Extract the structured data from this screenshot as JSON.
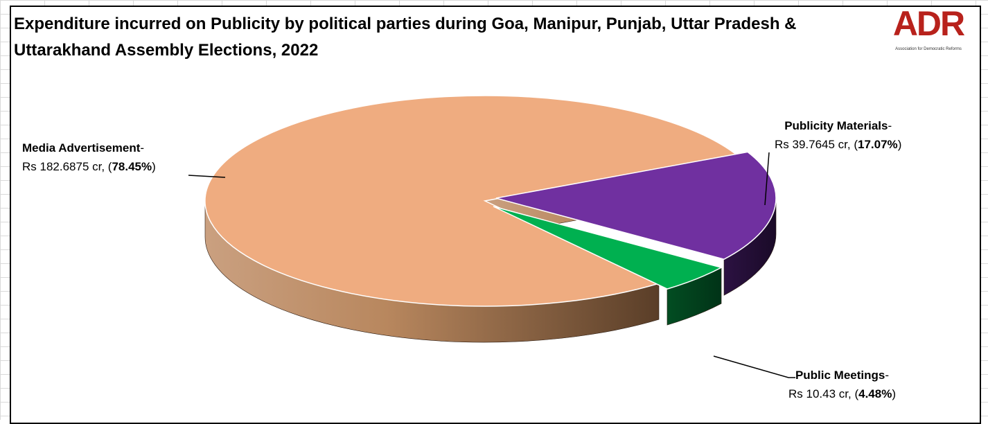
{
  "logo": {
    "text": "ADR",
    "subtitle": "Association for Democratic Reforms"
  },
  "colors": {
    "media": "#efac80",
    "materials": "#7030a0",
    "meetings": "#00b050"
  },
  "chart_data": {
    "type": "pie",
    "title": "Expenditure incurred on Publicity by political parties during Goa, Manipur, Punjab, Uttar Pradesh & Uttarakhand Assembly Elections, 2022",
    "slices": [
      {
        "label": "Media Advertisement",
        "amount": "Rs 182.6875 cr",
        "value": 182.6875,
        "percent": "78.45%"
      },
      {
        "label": "Publicity Materials",
        "amount": "Rs 39.7645 cr",
        "value": 39.7645,
        "percent": "17.07%"
      },
      {
        "label": "Public Meetings",
        "amount": "Rs 10.43 cr",
        "value": 10.43,
        "percent": "4.48%"
      }
    ],
    "legend": "none",
    "style": "3d"
  }
}
